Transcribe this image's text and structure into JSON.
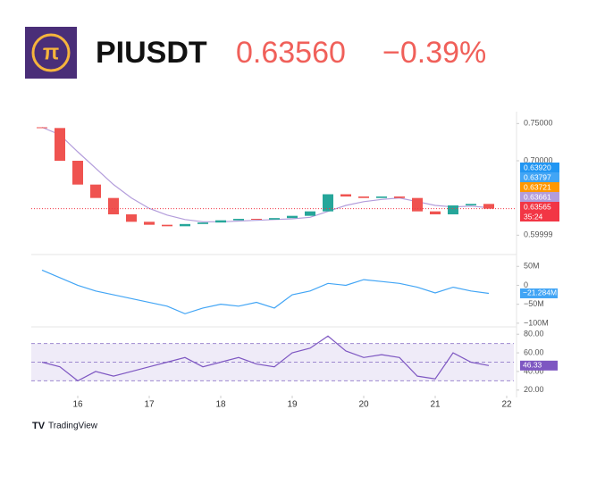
{
  "header": {
    "symbol": "PIUSDT",
    "price": "0.63560",
    "change": "−0.39%"
  },
  "footer": {
    "brand": "TradingView"
  },
  "chart_data": [
    {
      "type": "candlestick",
      "x": [
        15.5,
        15.75,
        16,
        16.25,
        16.5,
        16.75,
        17,
        17.25,
        17.5,
        17.75,
        18,
        18.25,
        18.5,
        18.75,
        19,
        19.25,
        19.5,
        19.75,
        20,
        20.25,
        20.5,
        20.75,
        21,
        21.25,
        21.5,
        21.75
      ],
      "open": [
        0.745,
        0.744,
        0.7,
        0.668,
        0.65,
        0.628,
        0.618,
        0.614,
        0.612,
        0.615,
        0.617,
        0.62,
        0.622,
        0.621,
        0.623,
        0.626,
        0.632,
        0.655,
        0.652,
        0.65,
        0.652,
        0.65,
        0.632,
        0.628,
        0.64,
        0.642
      ],
      "close": [
        0.744,
        0.7,
        0.668,
        0.65,
        0.628,
        0.618,
        0.614,
        0.612,
        0.615,
        0.617,
        0.62,
        0.622,
        0.621,
        0.623,
        0.626,
        0.632,
        0.655,
        0.652,
        0.65,
        0.652,
        0.65,
        0.632,
        0.628,
        0.64,
        0.642,
        0.6356
      ],
      "up_color": "#26a69a",
      "down_color": "#ef5350",
      "series": [
        {
          "color": "#b39ddb",
          "values": [
            0.745,
            0.735,
            0.712,
            0.69,
            0.668,
            0.65,
            0.636,
            0.627,
            0.621,
            0.618,
            0.618,
            0.619,
            0.62,
            0.621,
            0.622,
            0.624,
            0.632,
            0.64,
            0.645,
            0.648,
            0.65,
            0.645,
            0.64,
            0.638,
            0.639,
            0.637
          ]
        }
      ],
      "xlim": [
        15.35,
        22.1
      ],
      "ylim": [
        0.58,
        0.76
      ],
      "yticks": [
        {
          "value": 0.75,
          "label": "0.75000"
        },
        {
          "value": 0.7,
          "label": "0.70000"
        },
        {
          "value": 0.59999,
          "label": "0.59999"
        }
      ],
      "badges": [
        {
          "label": "0.63920",
          "color": "#2196f3"
        },
        {
          "label": "0.63797",
          "color": "#42a5f5"
        },
        {
          "label": "0.63721",
          "color": "#ff9800"
        },
        {
          "label": "0.63661",
          "color": "#b39ddb"
        },
        {
          "label": "0.63565",
          "color": "#f23645"
        },
        {
          "label": "35:24",
          "color": "#f23645"
        }
      ]
    },
    {
      "type": "line",
      "color": "#42a5f5",
      "x": [
        15.5,
        15.75,
        16,
        16.25,
        16.5,
        16.75,
        17,
        17.25,
        17.5,
        17.75,
        18,
        18.25,
        18.5,
        18.75,
        19,
        19.25,
        19.5,
        19.75,
        20,
        20.25,
        20.5,
        20.75,
        21,
        21.25,
        21.5,
        21.75
      ],
      "values": [
        40,
        20,
        0,
        -15,
        -25,
        -35,
        -45,
        -55,
        -75,
        -60,
        -50,
        -55,
        -45,
        -60,
        -25,
        -15,
        5,
        0,
        15,
        10,
        5,
        -5,
        -20,
        -5,
        -15,
        -21.284
      ],
      "last_label": "−21.284M",
      "xlim": [
        15.35,
        22.1
      ],
      "ylim": [
        -105,
        60
      ],
      "yticks": [
        {
          "value": 50,
          "label": "50M"
        },
        0,
        {
          "value": -50,
          "label": "−50M"
        },
        {
          "value": -100,
          "label": "−100M"
        }
      ]
    },
    {
      "type": "line",
      "color": "#7e57c2",
      "x": [
        15.5,
        15.75,
        16,
        16.25,
        16.5,
        16.75,
        17,
        17.25,
        17.5,
        17.75,
        18,
        18.25,
        18.5,
        18.75,
        19,
        19.25,
        19.5,
        19.75,
        20,
        20.25,
        20.5,
        20.75,
        21,
        21.25,
        21.5,
        21.75
      ],
      "values": [
        50,
        45,
        30,
        40,
        35,
        40,
        45,
        50,
        55,
        45,
        50,
        55,
        48,
        45,
        60,
        65,
        78,
        62,
        55,
        58,
        55,
        35,
        32,
        60,
        50,
        46.33
      ],
      "value_labels_last": "46.33",
      "bands": [
        70,
        50,
        30
      ],
      "xlim": [
        15.35,
        22.1
      ],
      "ylim": [
        15,
        85
      ],
      "yticks": [
        {
          "value": 80,
          "label": "80.00"
        },
        {
          "value": 60,
          "label": "60.00"
        },
        {
          "value": 40,
          "label": "40.00"
        },
        {
          "value": 20,
          "label": "20.00"
        }
      ],
      "xticks": [
        16,
        17,
        18,
        19,
        20,
        21,
        22
      ]
    }
  ]
}
